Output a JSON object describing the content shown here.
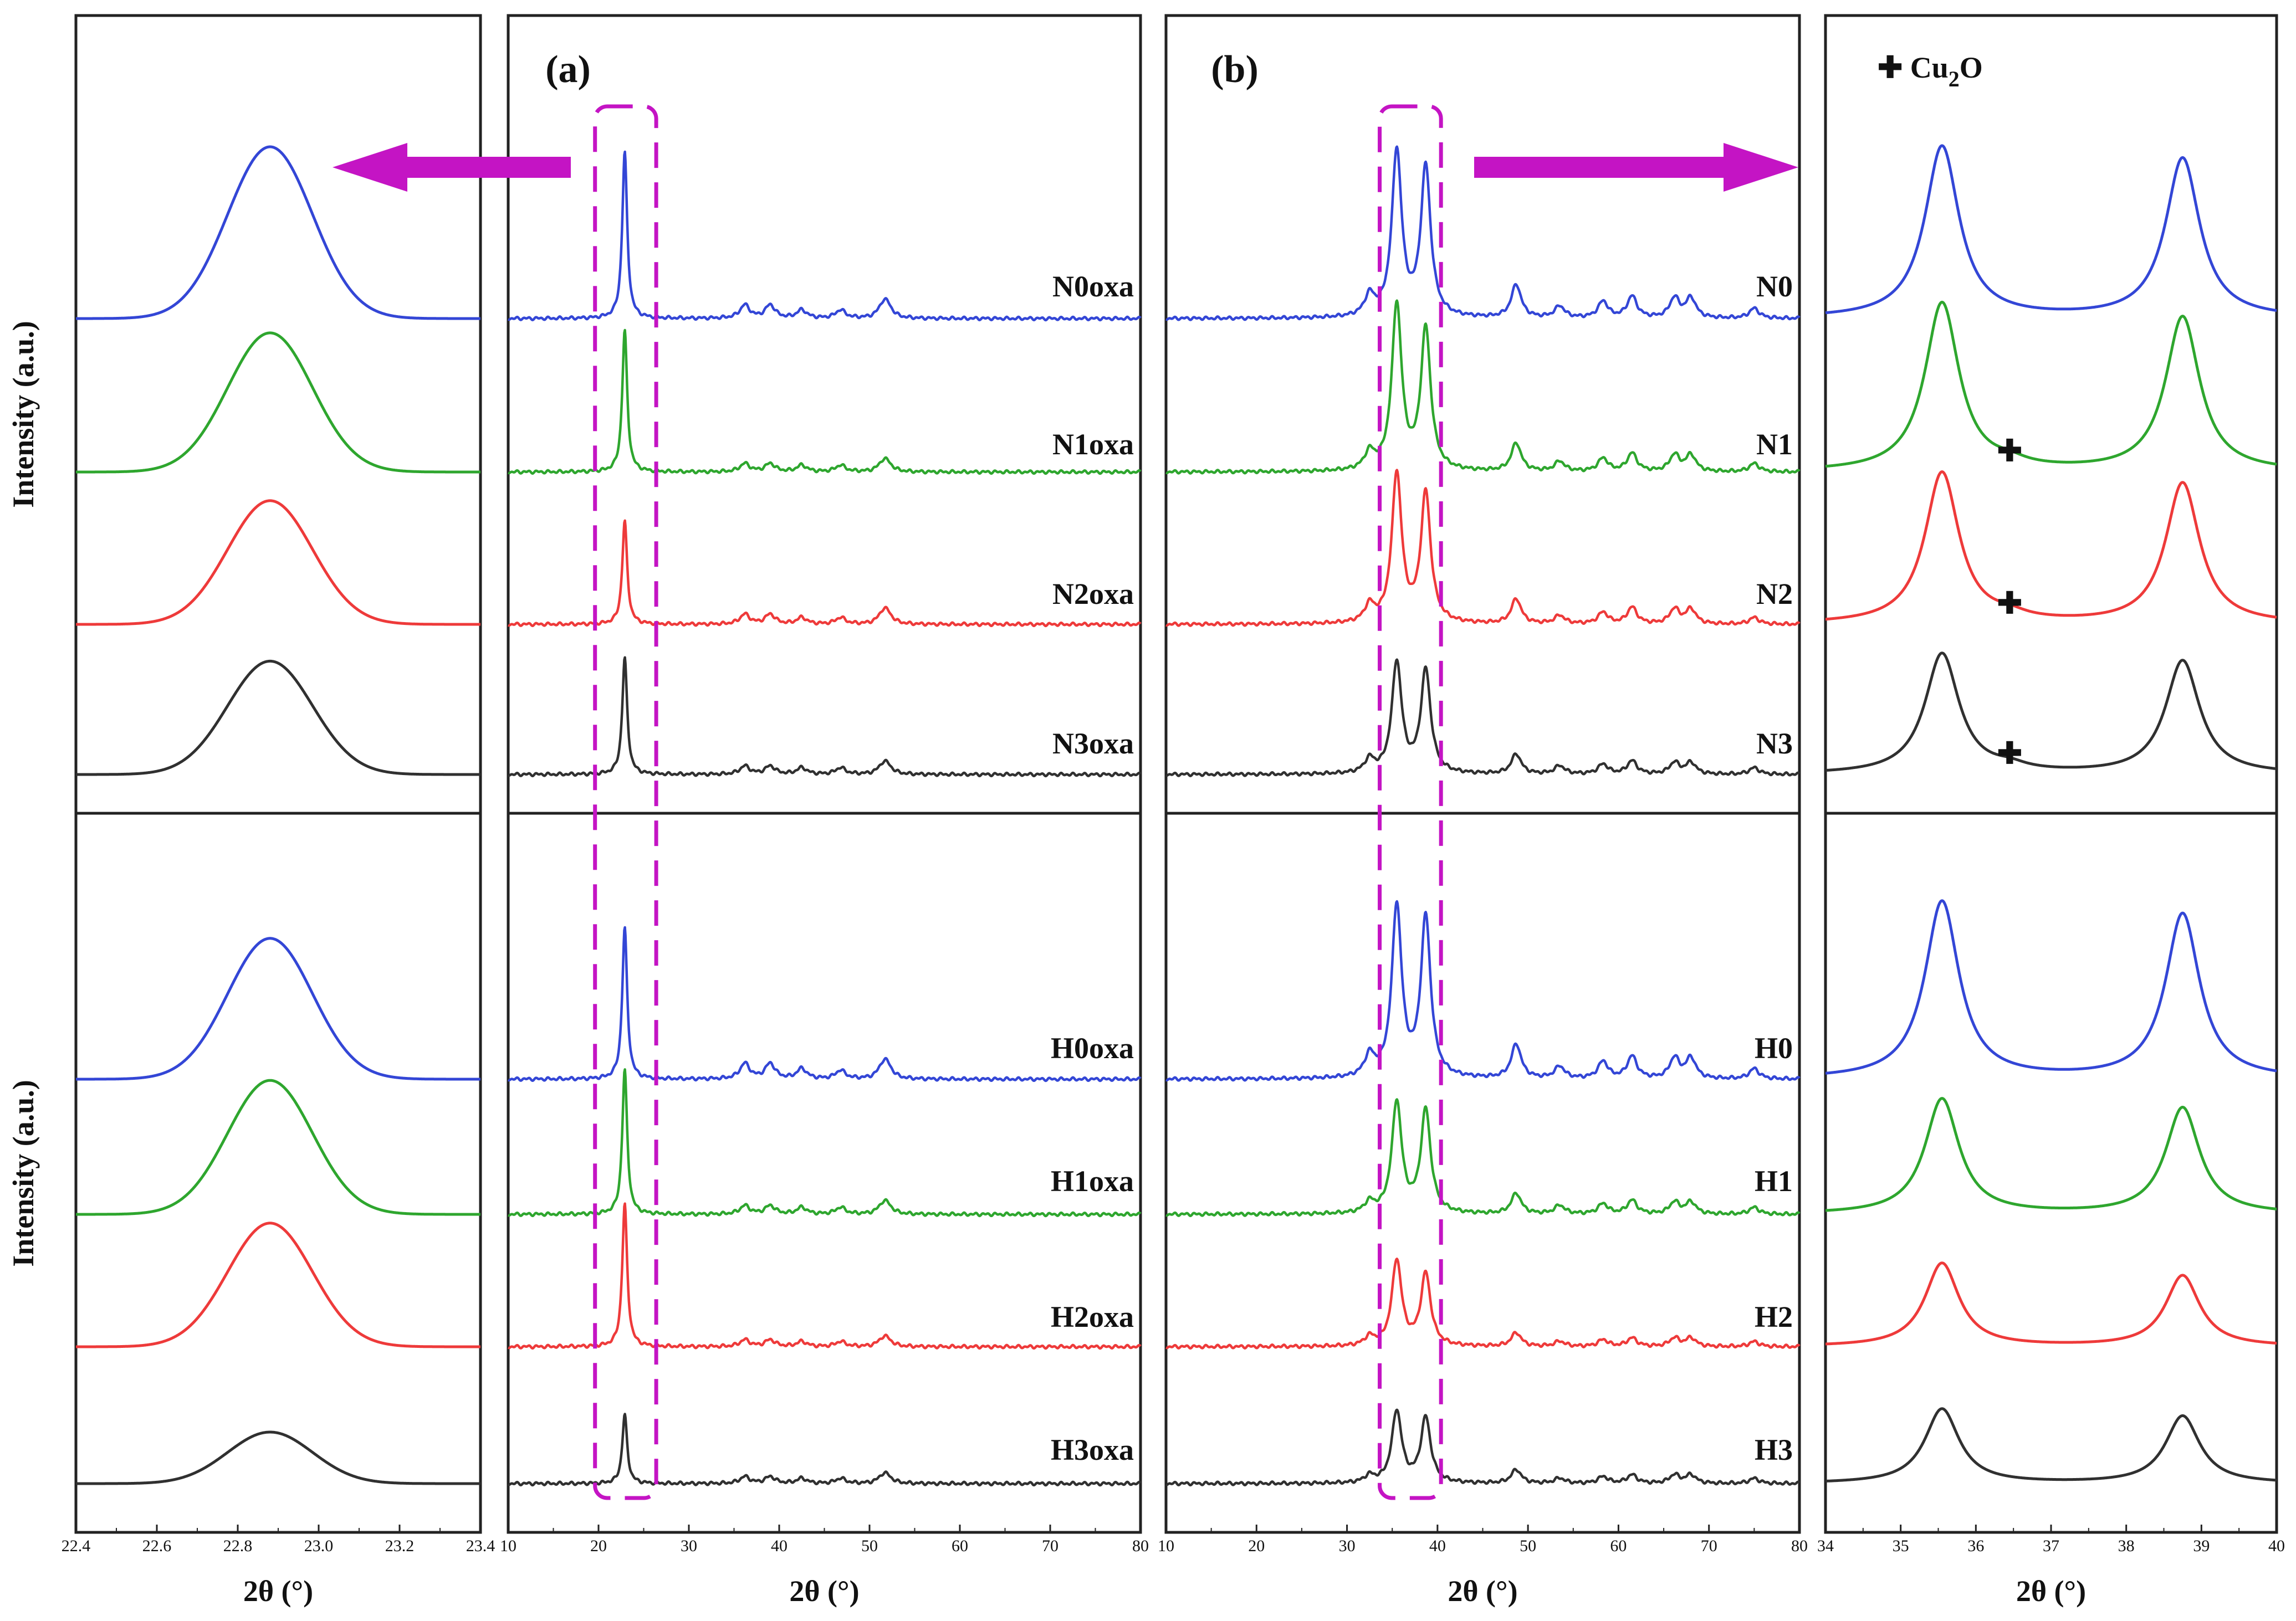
{
  "figure": {
    "colors": {
      "s0": "#3346d6",
      "s1": "#2ea62e",
      "s2": "#ee3a3a",
      "s3": "#303030",
      "accent": "#c414c4",
      "frame": "#222222"
    },
    "panel_labels": {
      "a": "(a)",
      "b": "(b)"
    },
    "y_label": "Intensity (a.u.)",
    "legend_cu2o": {
      "symbol": "✚",
      "text_main": "Cu",
      "text_sub": "2",
      "text_end": "O"
    }
  },
  "chart_data": [
    {
      "id": "oxa_zoom",
      "type": "line",
      "xlabel": "2θ (°)",
      "ylabel": "Intensity (a.u.)",
      "xlim": [
        22.4,
        23.4
      ],
      "x_ticks": [
        "22.4",
        "22.6",
        "22.8",
        "23.0",
        "23.2",
        "23.4"
      ],
      "peaks": [
        22.88
      ],
      "groups": [
        {
          "name": "N",
          "series": [
            {
              "name": "N0oxa",
              "color": "s0",
              "heights": [
                1.0
              ]
            },
            {
              "name": "N1oxa",
              "color": "s1",
              "heights": [
                0.81
              ]
            },
            {
              "name": "N2oxa",
              "color": "s2",
              "heights": [
                0.72
              ]
            },
            {
              "name": "N3oxa",
              "color": "s3",
              "heights": [
                0.66
              ]
            }
          ]
        },
        {
          "name": "H",
          "series": [
            {
              "name": "H0oxa",
              "color": "s0",
              "heights": [
                0.82
              ]
            },
            {
              "name": "H1oxa",
              "color": "s1",
              "heights": [
                0.78
              ]
            },
            {
              "name": "H2oxa",
              "color": "s2",
              "heights": [
                0.72
              ]
            },
            {
              "name": "H3oxa",
              "color": "s3",
              "heights": [
                0.3
              ]
            }
          ]
        }
      ]
    },
    {
      "id": "a_full",
      "type": "line",
      "panel": "(a)",
      "xlabel": "2θ (°)",
      "xlim": [
        10,
        80
      ],
      "x_ticks": [
        "10",
        "20",
        "30",
        "40",
        "50",
        "60",
        "70",
        "80"
      ],
      "peaks": [
        22.9,
        36.2,
        39.0,
        42.5,
        46.8,
        51.5,
        52.0
      ],
      "highlight_range": [
        19,
        27
      ],
      "groups": [
        {
          "name": "N",
          "series": [
            {
              "name": "N0oxa",
              "color": "s0",
              "heights": [
                1.0,
                0.08,
                0.08,
                0.05,
                0.05,
                0.07,
                0.06
              ]
            },
            {
              "name": "N1oxa",
              "color": "s1",
              "heights": [
                0.85,
                0.05,
                0.05,
                0.04,
                0.04,
                0.05,
                0.04
              ]
            },
            {
              "name": "N2oxa",
              "color": "s2",
              "heights": [
                0.62,
                0.06,
                0.06,
                0.04,
                0.04,
                0.06,
                0.05
              ]
            },
            {
              "name": "N3oxa",
              "color": "s3",
              "heights": [
                0.7,
                0.05,
                0.05,
                0.04,
                0.04,
                0.05,
                0.04
              ]
            }
          ]
        },
        {
          "name": "H",
          "series": [
            {
              "name": "H0oxa",
              "color": "s0",
              "heights": [
                0.88,
                0.09,
                0.09,
                0.06,
                0.05,
                0.07,
                0.06
              ]
            },
            {
              "name": "H1oxa",
              "color": "s1",
              "heights": [
                0.84,
                0.05,
                0.05,
                0.04,
                0.04,
                0.05,
                0.04
              ]
            },
            {
              "name": "H2oxa",
              "color": "s2",
              "heights": [
                0.83,
                0.04,
                0.04,
                0.03,
                0.03,
                0.04,
                0.03
              ]
            },
            {
              "name": "H3oxa",
              "color": "s3",
              "heights": [
                0.4,
                0.04,
                0.04,
                0.03,
                0.03,
                0.04,
                0.03
              ]
            }
          ]
        }
      ]
    },
    {
      "id": "b_full",
      "type": "line",
      "panel": "(b)",
      "xlabel": "2θ (°)",
      "xlim": [
        10,
        80
      ],
      "x_ticks": [
        "10",
        "20",
        "30",
        "40",
        "50",
        "60",
        "70",
        "80"
      ],
      "peaks": [
        32.5,
        35.5,
        38.7,
        48.7,
        53.5,
        58.3,
        61.5,
        66.2,
        68.0,
        75.0
      ],
      "highlight_range": [
        33,
        41
      ],
      "groups": [
        {
          "name": "N",
          "series": [
            {
              "name": "N0",
              "color": "s0",
              "heights": [
                0.12,
                1.0,
                0.9,
                0.2,
                0.07,
                0.1,
                0.13,
                0.12,
                0.12,
                0.06
              ]
            },
            {
              "name": "N1",
              "color": "s1",
              "heights": [
                0.1,
                1.0,
                0.85,
                0.17,
                0.06,
                0.08,
                0.11,
                0.1,
                0.1,
                0.05
              ]
            },
            {
              "name": "N2",
              "color": "s2",
              "heights": [
                0.1,
                0.9,
                0.78,
                0.15,
                0.05,
                0.07,
                0.1,
                0.09,
                0.09,
                0.04
              ]
            },
            {
              "name": "N3",
              "color": "s3",
              "heights": [
                0.08,
                0.67,
                0.62,
                0.12,
                0.05,
                0.06,
                0.08,
                0.07,
                0.07,
                0.04
              ]
            }
          ]
        },
        {
          "name": "H",
          "series": [
            {
              "name": "H0",
              "color": "s0",
              "heights": [
                0.12,
                1.0,
                0.93,
                0.2,
                0.07,
                0.1,
                0.13,
                0.12,
                0.12,
                0.06
              ]
            },
            {
              "name": "H1",
              "color": "s1",
              "heights": [
                0.06,
                0.65,
                0.6,
                0.12,
                0.05,
                0.06,
                0.08,
                0.07,
                0.07,
                0.04
              ]
            },
            {
              "name": "H2",
              "color": "s2",
              "heights": [
                0.05,
                0.5,
                0.42,
                0.08,
                0.03,
                0.04,
                0.05,
                0.05,
                0.05,
                0.03
              ]
            },
            {
              "name": "H3",
              "color": "s3",
              "heights": [
                0.04,
                0.42,
                0.38,
                0.08,
                0.03,
                0.04,
                0.05,
                0.05,
                0.05,
                0.03
              ]
            }
          ]
        }
      ]
    },
    {
      "id": "cu_zoom",
      "type": "line",
      "xlabel": "2θ (°)",
      "xlim": [
        34,
        40
      ],
      "x_ticks": [
        "34",
        "35",
        "36",
        "37",
        "38",
        "39",
        "40"
      ],
      "peaks": [
        35.55,
        38.75,
        36.45
      ],
      "cu2o_marker_at": 36.45,
      "groups": [
        {
          "name": "N",
          "series": [
            {
              "name": "N0",
              "color": "s0",
              "heights": [
                1.0,
                0.93,
                0.0
              ],
              "cu2o_marker": false
            },
            {
              "name": "N1",
              "color": "s1",
              "heights": [
                0.98,
                0.9,
                0.03
              ],
              "cu2o_marker": true
            },
            {
              "name": "N2",
              "color": "s2",
              "heights": [
                0.88,
                0.82,
                0.03
              ],
              "cu2o_marker": true
            },
            {
              "name": "N3",
              "color": "s3",
              "heights": [
                0.7,
                0.66,
                0.03
              ],
              "cu2o_marker": true
            }
          ]
        },
        {
          "name": "H",
          "series": [
            {
              "name": "H0",
              "color": "s0",
              "heights": [
                1.0,
                0.93,
                0.0
              ],
              "cu2o_marker": false
            },
            {
              "name": "H1",
              "color": "s1",
              "heights": [
                0.65,
                0.6,
                0.0
              ],
              "cu2o_marker": false
            },
            {
              "name": "H2",
              "color": "s2",
              "heights": [
                0.47,
                0.4,
                0.0
              ],
              "cu2o_marker": false
            },
            {
              "name": "H3",
              "color": "s3",
              "heights": [
                0.42,
                0.38,
                0.0
              ],
              "cu2o_marker": false
            }
          ]
        }
      ]
    }
  ]
}
